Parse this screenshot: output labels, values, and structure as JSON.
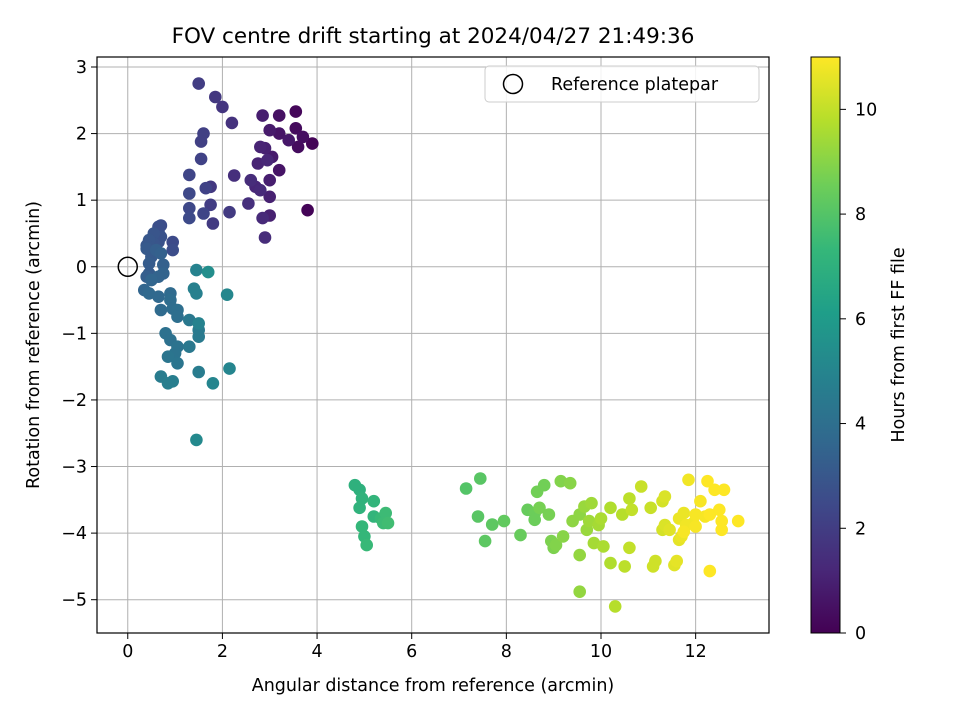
{
  "chart_data": {
    "type": "scatter",
    "title": "FOV centre drift starting at 2024/04/27 21:49:36",
    "xlabel": "Angular distance from reference (arcmin)",
    "ylabel": "Rotation from reference (arcmin)",
    "xlim": [
      -0.65,
      13.55
    ],
    "ylim": [
      -5.5,
      3.15
    ],
    "xticks": [
      0,
      2,
      4,
      6,
      8,
      10,
      12
    ],
    "yticks": [
      -5,
      -4,
      -3,
      -2,
      -1,
      0,
      1,
      2,
      3
    ],
    "grid": true,
    "legend": {
      "placement": "top-right",
      "entries": [
        "Reference platepar"
      ]
    },
    "colorbar": {
      "label": "Hours from first FF file",
      "colormap": "viridis",
      "range": [
        0,
        11
      ],
      "ticks": [
        0,
        2,
        4,
        6,
        8,
        10
      ]
    },
    "reference_point": {
      "x": 0,
      "y": 0
    },
    "points": [
      [
        3.8,
        0.85,
        0.1
      ],
      [
        3.9,
        1.85,
        0.1
      ],
      [
        3.55,
        2.33,
        0.2
      ],
      [
        3.55,
        2.08,
        0.3
      ],
      [
        3.6,
        1.8,
        0.35
      ],
      [
        3.7,
        1.95,
        0.4
      ],
      [
        3.2,
        2.27,
        0.5
      ],
      [
        3.2,
        2.0,
        0.6
      ],
      [
        3.2,
        1.45,
        0.6
      ],
      [
        3.4,
        1.9,
        0.7
      ],
      [
        3.0,
        2.05,
        0.8
      ],
      [
        3.05,
        1.65,
        0.8
      ],
      [
        2.85,
        2.27,
        0.9
      ],
      [
        3.0,
        1.3,
        0.9
      ],
      [
        2.9,
        1.78,
        1.0
      ],
      [
        3.0,
        1.05,
        1.0
      ],
      [
        3.0,
        0.77,
        1.0
      ],
      [
        2.8,
        1.8,
        1.1
      ],
      [
        2.75,
        1.55,
        1.1
      ],
      [
        2.95,
        1.6,
        1.2
      ],
      [
        2.7,
        1.2,
        1.2
      ],
      [
        2.8,
        1.15,
        1.3
      ],
      [
        2.85,
        0.73,
        1.3
      ],
      [
        2.9,
        0.44,
        1.4
      ],
      [
        2.6,
        1.3,
        1.4
      ],
      [
        2.55,
        0.95,
        1.5
      ],
      [
        2.25,
        1.37,
        1.5
      ],
      [
        2.2,
        2.16,
        1.6
      ],
      [
        2.0,
        2.4,
        1.7
      ],
      [
        1.85,
        2.55,
        1.8
      ],
      [
        1.75,
        1.2,
        1.8
      ],
      [
        2.15,
        0.82,
        1.9
      ],
      [
        1.8,
        0.65,
        1.9
      ],
      [
        1.75,
        0.93,
        2.0
      ],
      [
        1.5,
        2.75,
        2.0
      ],
      [
        1.6,
        2.0,
        2.1
      ],
      [
        1.55,
        1.88,
        2.1
      ],
      [
        1.55,
        1.62,
        2.2
      ],
      [
        1.65,
        1.18,
        2.2
      ],
      [
        1.6,
        0.8,
        2.3
      ],
      [
        1.3,
        1.38,
        2.3
      ],
      [
        1.3,
        1.1,
        2.4
      ],
      [
        1.3,
        0.88,
        2.4
      ],
      [
        1.3,
        0.73,
        2.5
      ],
      [
        0.95,
        0.37,
        2.5
      ],
      [
        0.95,
        0.25,
        2.6
      ],
      [
        0.7,
        0.62,
        2.6
      ],
      [
        0.65,
        0.6,
        2.7
      ],
      [
        0.65,
        0.53,
        2.7
      ],
      [
        0.7,
        0.45,
        2.8
      ],
      [
        0.65,
        0.37,
        2.8
      ],
      [
        0.55,
        0.5,
        2.9
      ],
      [
        0.55,
        0.35,
        2.9
      ],
      [
        0.45,
        0.4,
        3.0
      ],
      [
        0.4,
        0.32,
        3.0
      ],
      [
        0.4,
        0.27,
        3.1
      ],
      [
        0.5,
        0.15,
        3.1
      ],
      [
        0.45,
        0.05,
        3.2
      ],
      [
        0.45,
        -0.1,
        3.2
      ],
      [
        0.4,
        -0.15,
        3.3
      ],
      [
        0.6,
        0.25,
        3.3
      ],
      [
        0.7,
        0.2,
        3.4
      ],
      [
        0.75,
        0.03,
        3.4
      ],
      [
        0.75,
        -0.1,
        3.5
      ],
      [
        0.65,
        -0.15,
        3.5
      ],
      [
        0.5,
        -0.2,
        3.6
      ],
      [
        0.35,
        -0.35,
        3.6
      ],
      [
        0.45,
        -0.4,
        3.7
      ],
      [
        0.65,
        -0.45,
        3.7
      ],
      [
        0.7,
        -0.65,
        3.8
      ],
      [
        0.9,
        -0.4,
        3.8
      ],
      [
        0.9,
        -0.5,
        3.9
      ],
      [
        0.95,
        -0.63,
        3.9
      ],
      [
        1.05,
        -0.65,
        4.0
      ],
      [
        1.05,
        -0.75,
        4.0
      ],
      [
        0.8,
        -1.0,
        4.1
      ],
      [
        0.9,
        -1.1,
        4.1
      ],
      [
        1.05,
        -1.2,
        4.2
      ],
      [
        1.0,
        -1.3,
        4.2
      ],
      [
        0.85,
        -1.35,
        4.3
      ],
      [
        1.05,
        -1.45,
        4.3
      ],
      [
        1.3,
        -0.8,
        4.4
      ],
      [
        1.3,
        -1.2,
        4.4
      ],
      [
        1.5,
        -0.95,
        4.5
      ],
      [
        1.5,
        -1.05,
        4.5
      ],
      [
        1.5,
        -1.58,
        4.6
      ],
      [
        0.7,
        -1.65,
        4.6
      ],
      [
        0.85,
        -1.75,
        4.7
      ],
      [
        0.95,
        -1.72,
        4.7
      ],
      [
        1.4,
        -0.33,
        4.8
      ],
      [
        1.45,
        -0.4,
        4.8
      ],
      [
        1.45,
        -0.05,
        4.9
      ],
      [
        1.5,
        -0.85,
        4.9
      ],
      [
        1.8,
        -1.75,
        5.0
      ],
      [
        2.15,
        -1.53,
        5.0
      ],
      [
        2.1,
        -0.42,
        5.1
      ],
      [
        1.45,
        -2.6,
        5.2
      ],
      [
        1.7,
        -0.08,
        5.4
      ],
      [
        4.8,
        -3.28,
        7.0
      ],
      [
        4.9,
        -3.35,
        7.0
      ],
      [
        4.95,
        -3.48,
        7.1
      ],
      [
        4.9,
        -3.62,
        7.1
      ],
      [
        5.2,
        -3.52,
        7.2
      ],
      [
        5.2,
        -3.75,
        7.2
      ],
      [
        4.95,
        -3.9,
        7.3
      ],
      [
        5.0,
        -4.05,
        7.3
      ],
      [
        5.05,
        -4.18,
        7.4
      ],
      [
        5.35,
        -3.78,
        7.4
      ],
      [
        5.45,
        -3.7,
        7.5
      ],
      [
        5.4,
        -3.85,
        7.5
      ],
      [
        5.5,
        -3.85,
        7.6
      ],
      [
        7.15,
        -3.33,
        8.0
      ],
      [
        7.45,
        -3.18,
        8.1
      ],
      [
        7.4,
        -3.75,
        8.1
      ],
      [
        7.55,
        -4.12,
        8.2
      ],
      [
        7.7,
        -3.87,
        8.2
      ],
      [
        7.95,
        -3.82,
        8.3
      ],
      [
        8.3,
        -4.03,
        8.4
      ],
      [
        8.45,
        -3.65,
        8.4
      ],
      [
        8.6,
        -3.7,
        8.5
      ],
      [
        8.6,
        -3.8,
        8.5
      ],
      [
        8.65,
        -3.38,
        8.6
      ],
      [
        8.8,
        -3.28,
        8.6
      ],
      [
        8.7,
        -3.62,
        8.7
      ],
      [
        8.9,
        -3.72,
        8.7
      ],
      [
        8.95,
        -4.12,
        8.8
      ],
      [
        9.0,
        -4.22,
        8.8
      ],
      [
        9.05,
        -4.18,
        8.9
      ],
      [
        9.15,
        -3.22,
        8.9
      ],
      [
        9.2,
        -4.05,
        9.0
      ],
      [
        9.35,
        -3.25,
        9.0
      ],
      [
        9.4,
        -3.82,
        9.1
      ],
      [
        9.55,
        -3.72,
        9.1
      ],
      [
        9.55,
        -4.33,
        9.2
      ],
      [
        9.55,
        -4.88,
        9.2
      ],
      [
        9.65,
        -3.6,
        9.3
      ],
      [
        9.7,
        -3.95,
        9.3
      ],
      [
        9.8,
        -3.55,
        9.4
      ],
      [
        9.75,
        -3.82,
        9.4
      ],
      [
        9.85,
        -4.15,
        9.5
      ],
      [
        9.95,
        -3.88,
        9.5
      ],
      [
        10.05,
        -4.2,
        9.6
      ],
      [
        10.0,
        -3.78,
        9.6
      ],
      [
        10.2,
        -3.62,
        9.7
      ],
      [
        10.2,
        -4.45,
        9.7
      ],
      [
        10.3,
        -5.1,
        9.8
      ],
      [
        10.45,
        -3.72,
        9.8
      ],
      [
        10.5,
        -4.5,
        9.9
      ],
      [
        10.6,
        -3.48,
        9.9
      ],
      [
        10.6,
        -4.22,
        10.0
      ],
      [
        10.65,
        -3.65,
        10.0
      ],
      [
        10.85,
        -3.3,
        10.1
      ],
      [
        11.05,
        -3.62,
        10.1
      ],
      [
        11.1,
        -4.5,
        10.2
      ],
      [
        11.15,
        -4.42,
        10.2
      ],
      [
        11.3,
        -3.95,
        10.3
      ],
      [
        11.3,
        -3.52,
        10.3
      ],
      [
        11.35,
        -3.45,
        10.4
      ],
      [
        11.35,
        -3.88,
        10.4
      ],
      [
        11.45,
        -3.95,
        10.5
      ],
      [
        11.55,
        -4.48,
        10.5
      ],
      [
        11.6,
        -4.42,
        10.6
      ],
      [
        11.65,
        -4.1,
        10.6
      ],
      [
        11.65,
        -3.78,
        10.7
      ],
      [
        11.7,
        -4.05,
        10.7
      ],
      [
        11.75,
        -3.7,
        10.7
      ],
      [
        11.8,
        -3.88,
        10.8
      ],
      [
        11.85,
        -3.2,
        10.8
      ],
      [
        11.95,
        -3.85,
        10.8
      ],
      [
        12.0,
        -3.72,
        10.9
      ],
      [
        12.1,
        -3.52,
        10.9
      ],
      [
        12.2,
        -3.75,
        10.9
      ],
      [
        12.25,
        -3.22,
        11.0
      ],
      [
        12.3,
        -4.57,
        11.0
      ],
      [
        12.3,
        -3.72,
        11.0
      ],
      [
        12.4,
        -3.35,
        11.0
      ],
      [
        12.5,
        -3.65,
        11.0
      ],
      [
        12.55,
        -3.82,
        11.0
      ],
      [
        12.55,
        -3.95,
        11.0
      ],
      [
        12.6,
        -3.35,
        11.0
      ],
      [
        12.9,
        -3.82,
        11.0
      ],
      [
        11.75,
        -3.98,
        10.9
      ],
      [
        12.0,
        -3.9,
        10.9
      ]
    ]
  }
}
